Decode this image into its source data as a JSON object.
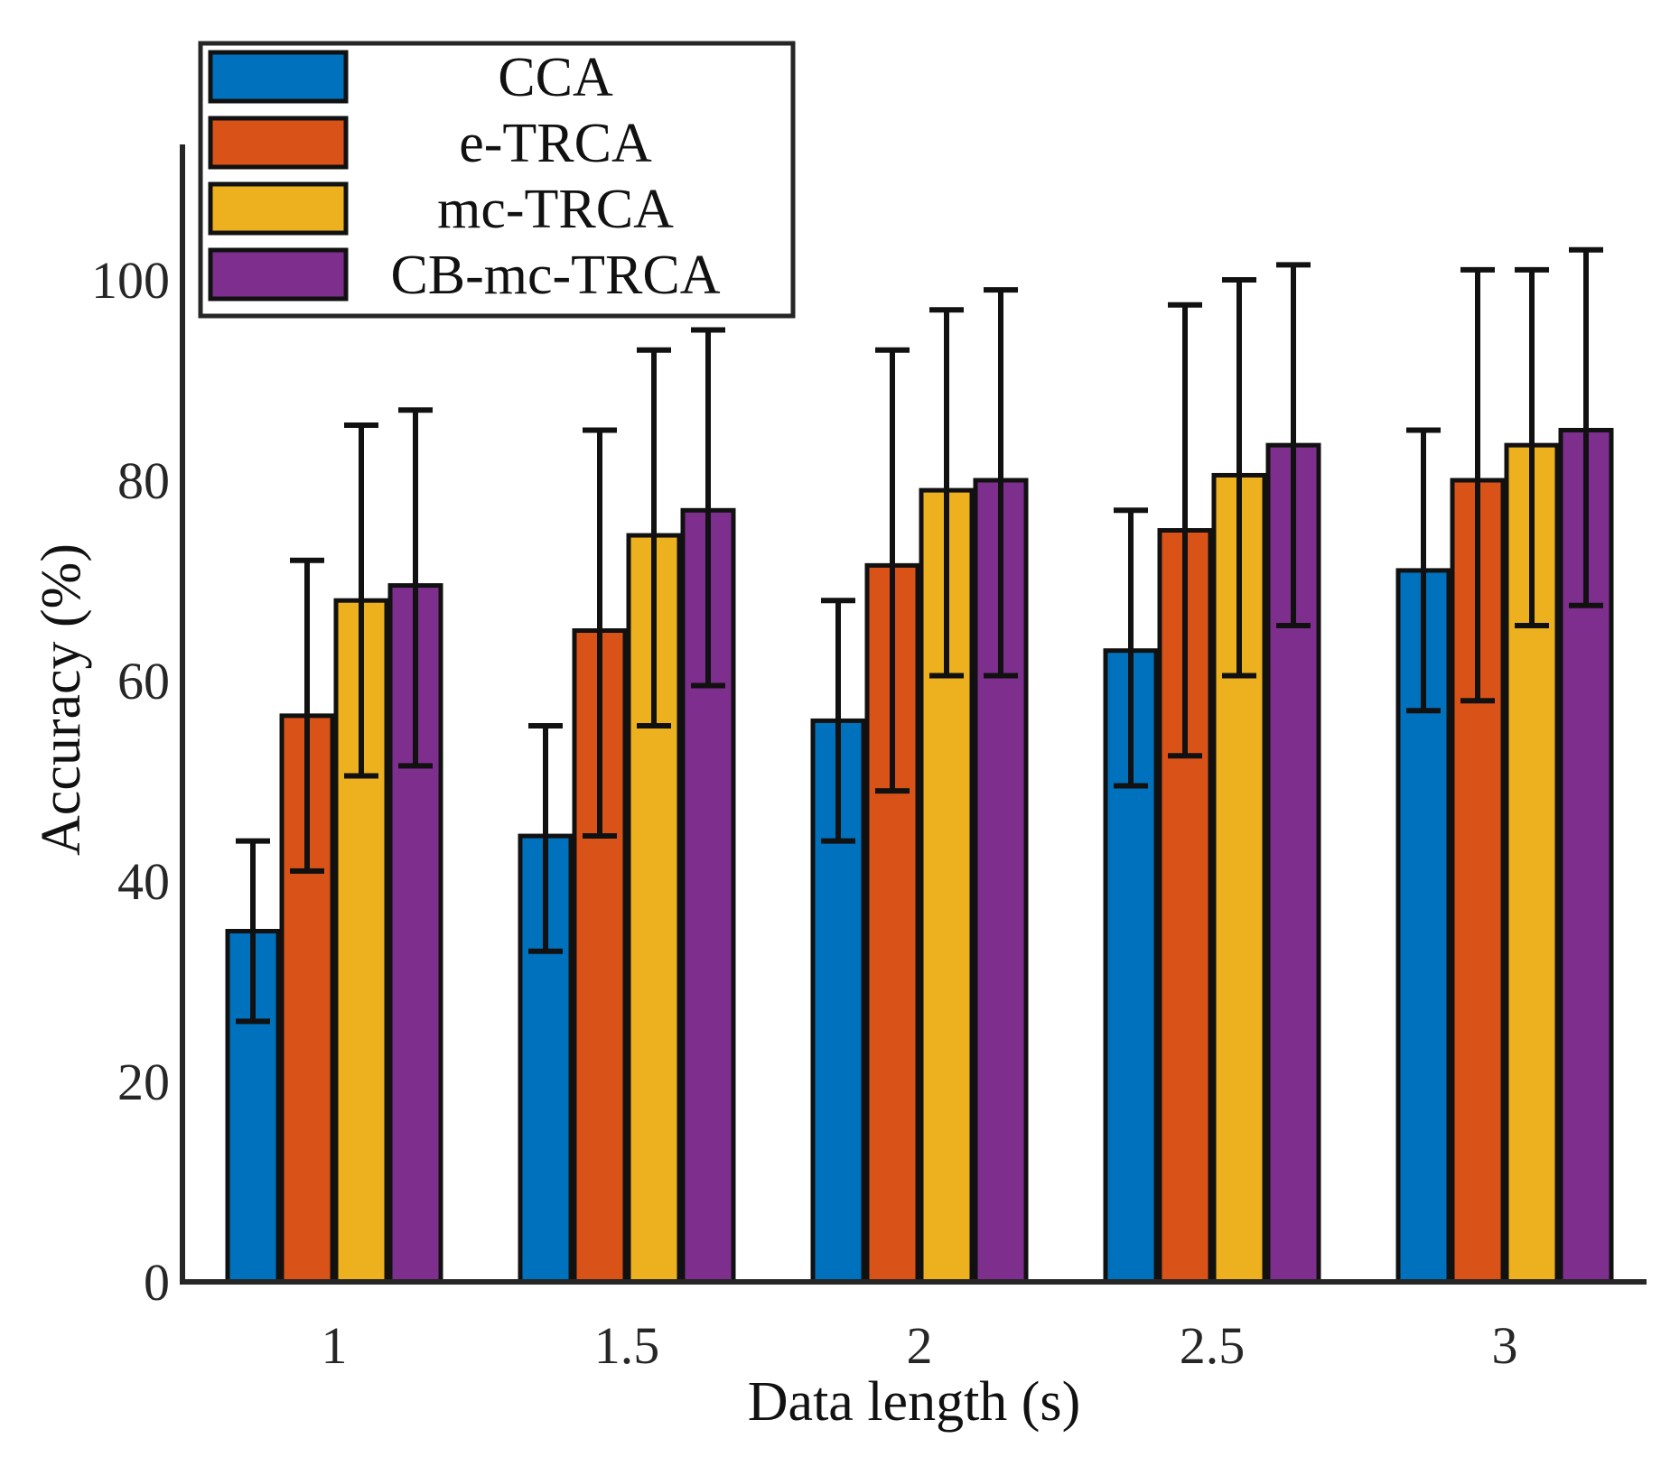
{
  "chart_data": {
    "type": "bar",
    "title": "",
    "xlabel": "Data length (s)",
    "ylabel": "Accuracy (%)",
    "categories": [
      "1",
      "1.5",
      "2",
      "2.5",
      "3"
    ],
    "ylim": [
      0,
      110
    ],
    "yticks": [
      "0",
      "20",
      "40",
      "60",
      "80",
      "100"
    ],
    "grid": false,
    "legend_position": "top-left",
    "series": [
      {
        "name": "CCA",
        "color": "#0072BD",
        "values": [
          35,
          44.5,
          56,
          63,
          71
        ],
        "error_low": [
          26,
          33,
          44,
          49.5,
          57
        ],
        "error_high": [
          44,
          55.5,
          68,
          77,
          85
        ]
      },
      {
        "name": "e-TRCA",
        "color": "#D95319",
        "values": [
          56.5,
          65,
          71.5,
          75,
          80
        ],
        "error_low": [
          41,
          44.5,
          49,
          52.5,
          58
        ],
        "error_high": [
          72,
          85,
          93,
          97.5,
          101
        ]
      },
      {
        "name": "mc-TRCA",
        "color": "#EDB120",
        "values": [
          68,
          74.5,
          79,
          80.5,
          83.5
        ],
        "error_low": [
          50.5,
          55.5,
          60.5,
          60.5,
          65.5
        ],
        "error_high": [
          85.5,
          93,
          97,
          100,
          101
        ]
      },
      {
        "name": "CB-mc-TRCA",
        "color": "#7E2F8E",
        "values": [
          69.5,
          77,
          80,
          83.5,
          85
        ],
        "error_low": [
          51.5,
          59.5,
          60.5,
          65.5,
          67.5
        ],
        "error_high": [
          87,
          95,
          99,
          101.5,
          103
        ]
      }
    ]
  }
}
